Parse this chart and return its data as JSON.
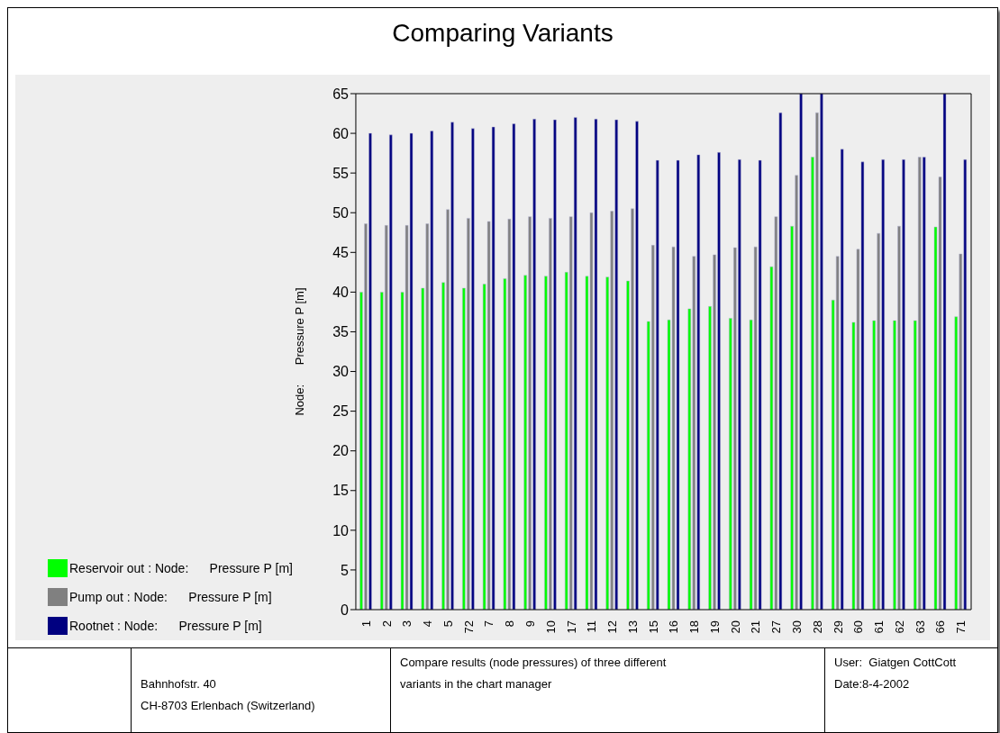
{
  "chart_data": {
    "type": "bar",
    "title": "Comparing Variants",
    "ylabel": "Node:      Pressure P [m]",
    "categories": [
      "1",
      "2",
      "3",
      "4",
      "5",
      "72",
      "7",
      "8",
      "9",
      "10",
      "17",
      "11",
      "12",
      "13",
      "15",
      "16",
      "18",
      "19",
      "20",
      "21",
      "27",
      "30",
      "28",
      "29",
      "60",
      "61",
      "62",
      "63",
      "66",
      "71"
    ],
    "series": [
      {
        "name": "Reservoir out : Node:      Pressure P [m]",
        "color": "#00ff00",
        "values": [
          40,
          40,
          40,
          40.5,
          41.2,
          40.5,
          41,
          41.7,
          42.1,
          42,
          42.5,
          42,
          41.9,
          41.4,
          36.3,
          36.5,
          37.9,
          38.2,
          36.7,
          36.5,
          43.2,
          48.3,
          57,
          39,
          36.2,
          36.4,
          36.4,
          36.4,
          48.2,
          36.9
        ]
      },
      {
        "name": "Pump out : Node:      Pressure P [m]",
        "color": "#808080",
        "values": [
          48.6,
          48.4,
          48.4,
          48.6,
          50.4,
          49.3,
          48.9,
          49.2,
          49.5,
          49.3,
          49.5,
          50,
          50.2,
          50.5,
          45.9,
          45.7,
          44.5,
          44.7,
          45.6,
          45.7,
          49.5,
          54.7,
          62.6,
          44.5,
          45.4,
          47.4,
          48.3,
          57,
          54.5,
          44.8
        ]
      },
      {
        "name": "Rootnet : Node:      Pressure P [m]",
        "color": "#000080",
        "values": [
          60,
          59.8,
          60,
          60.3,
          61.4,
          60.6,
          60.8,
          61.2,
          61.8,
          61.7,
          62,
          61.8,
          61.7,
          61.5,
          56.6,
          56.6,
          57.3,
          57.6,
          56.7,
          56.6,
          62.6,
          65,
          65,
          58,
          56.4,
          56.7,
          56.7,
          57,
          65,
          56.7
        ]
      }
    ],
    "ylim": [
      0,
      65
    ],
    "yticks": [
      0,
      5,
      10,
      15,
      20,
      25,
      30,
      35,
      40,
      45,
      50,
      55,
      60,
      65
    ],
    "grid": false,
    "legend": "bottom left",
    "annotations": [
      "Bahnhofstr. 40",
      "CH-8703 Erlenbach (Switzerland)",
      "Compare results (node pressures) of three different variants in the chart manager",
      "User:  Giatgen CottCott",
      "Date:8-4-2002"
    ]
  }
}
